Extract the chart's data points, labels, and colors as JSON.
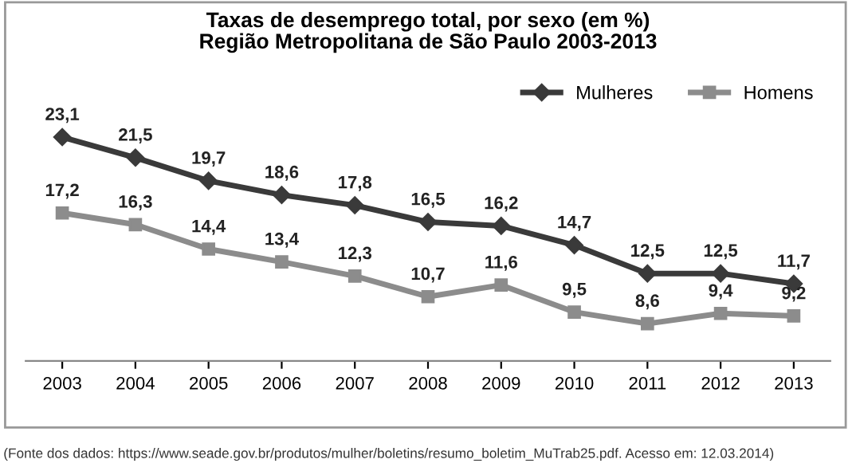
{
  "chart_data": {
    "type": "line",
    "title": "Taxas de desemprego total, por sexo (em %)\nRegião Metropolitana de São Paulo 2003-2013",
    "categories": [
      "2003",
      "2004",
      "2005",
      "2006",
      "2007",
      "2008",
      "2009",
      "2010",
      "2011",
      "2012",
      "2013"
    ],
    "series": [
      {
        "name": "Mulheres",
        "color": "#3a3a3a",
        "marker": "diamond",
        "values": [
          23.1,
          21.5,
          19.7,
          18.6,
          17.8,
          16.5,
          16.2,
          14.7,
          12.5,
          12.5,
          11.7
        ],
        "value_labels": [
          "23,1",
          "21,5",
          "19,7",
          "18,6",
          "17,8",
          "16,5",
          "16,2",
          "14,7",
          "12,5",
          "12,5",
          "11,7"
        ]
      },
      {
        "name": "Homens",
        "color": "#8c8c8c",
        "marker": "square",
        "values": [
          17.2,
          16.3,
          14.4,
          13.4,
          12.3,
          10.7,
          11.6,
          9.5,
          8.6,
          9.4,
          9.2
        ],
        "value_labels": [
          "17,2",
          "16,3",
          "14,4",
          "13,4",
          "12,3",
          "10,7",
          "11,6",
          "9,5",
          "8,6",
          "9,4",
          "9,2"
        ]
      }
    ],
    "tick_labels": "x",
    "grid": false,
    "legend": "top right",
    "line_style": "solid",
    "annotations": [
      "(Fonte dos dados: https://www.seade.gov.br/produtos/mulher/boletins/resumo_boletim_MuTrab25.pdf. Acesso em: 12.03.2014)"
    ]
  }
}
